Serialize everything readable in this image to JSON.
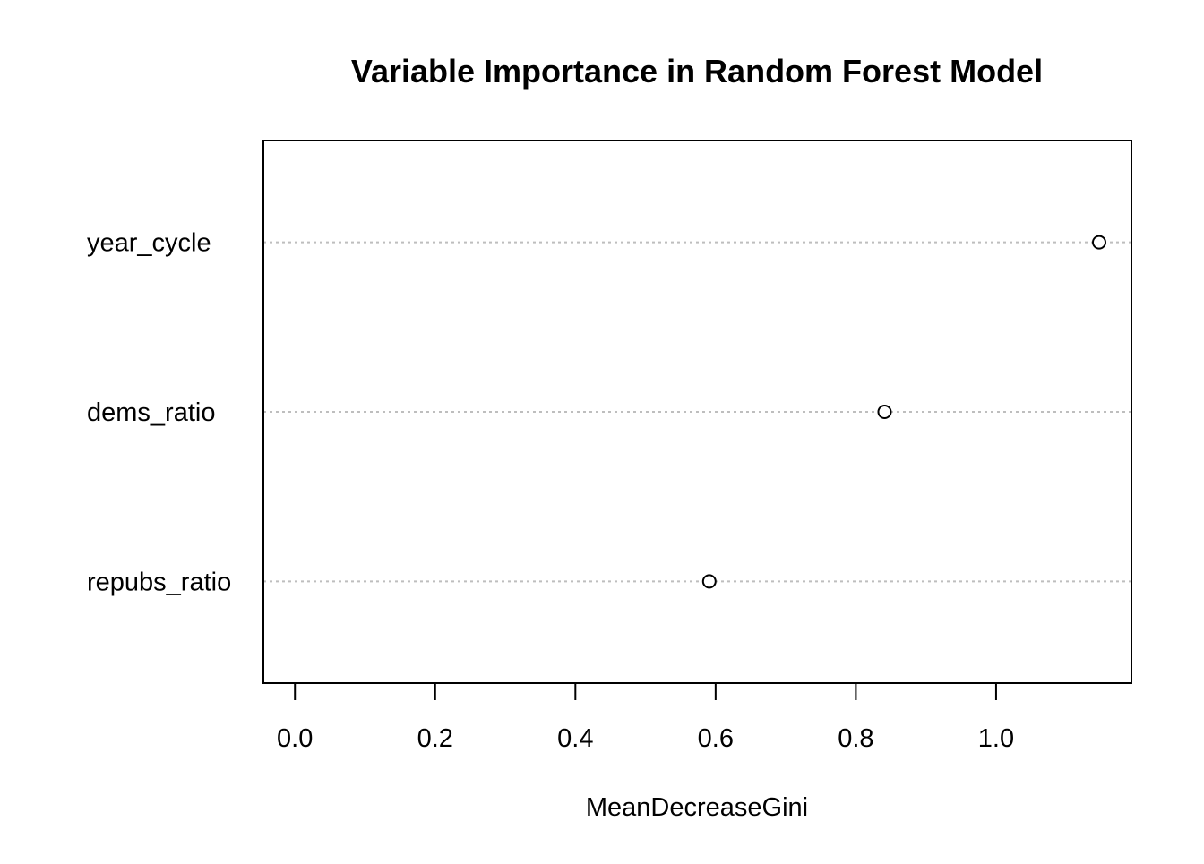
{
  "chart_data": {
    "type": "scatter",
    "subtype": "dotchart",
    "title": "Variable Importance in Random Forest Model",
    "xlabel": "MeanDecreaseGini",
    "ylabel": "",
    "categories": [
      "year_cycle",
      "dems_ratio",
      "repubs_ratio"
    ],
    "values": [
      1.147,
      0.841,
      0.591
    ],
    "xlim": [
      -0.045,
      1.193
    ],
    "xticks": [
      0.0,
      0.2,
      0.4,
      0.6,
      0.8,
      1.0
    ],
    "xtick_labels": [
      "0.0",
      "0.2",
      "0.4",
      "0.6",
      "0.8",
      "1.0"
    ],
    "grid": "dotted horizontal guide lines",
    "marker": "open circle",
    "colors": {
      "frame": "#000000",
      "guide": "#bebebe",
      "point": "#000000"
    }
  }
}
